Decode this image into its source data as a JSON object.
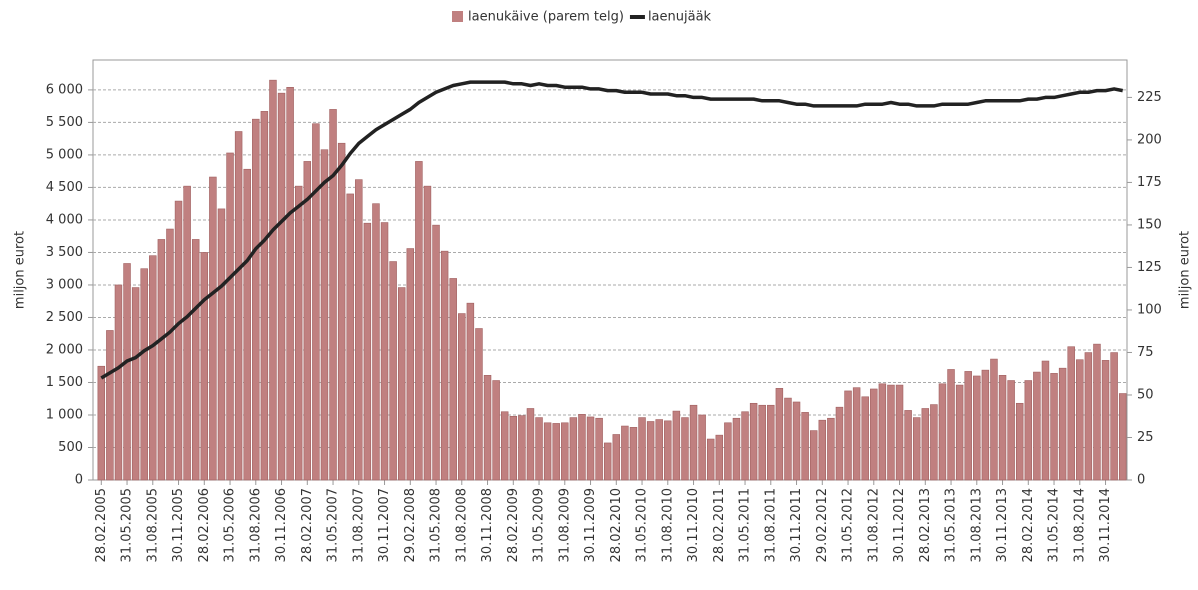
{
  "chart_data": {
    "type": "bar",
    "y_label": "miljon eurot",
    "y2_label": "miljon eurot",
    "categories": [
      "28.02.2005",
      null,
      null,
      "31.05.2005",
      null,
      null,
      "31.08.2005",
      null,
      null,
      "30.11.2005",
      null,
      null,
      "28.02.2006",
      null,
      null,
      "31.05.2006",
      null,
      null,
      "31.08.2006",
      null,
      null,
      "30.11.2006",
      null,
      null,
      "28.02.2007",
      null,
      null,
      "31.05.2007",
      null,
      null,
      "31.08.2007",
      null,
      null,
      "30.11.2007",
      null,
      null,
      "29.02.2008",
      null,
      null,
      "31.05.2008",
      null,
      null,
      "31.08.2008",
      null,
      null,
      "30.11.2008",
      null,
      null,
      "28.02.2009",
      null,
      null,
      "31.05.2009",
      null,
      null,
      "31.08.2009",
      null,
      null,
      "30.11.2009",
      null,
      null,
      "28.02.2010",
      null,
      null,
      "31.05.2010",
      null,
      null,
      "31.08.2010",
      null,
      null,
      "30.11.2010",
      null,
      null,
      "28.02.2011",
      null,
      null,
      "31.05.2011",
      null,
      null,
      "31.08.2011",
      null,
      null,
      "30.11.2011",
      null,
      null,
      "29.02.2012",
      null,
      null,
      "31.05.2012",
      null,
      null,
      "31.08.2012",
      null,
      null,
      "30.11.2012",
      null,
      null,
      "28.02.2013",
      null,
      null,
      "31.05.2013",
      null,
      null,
      "31.08.2013",
      null,
      null,
      "30.11.2013",
      null,
      null,
      "28.02.2014",
      null,
      null,
      "31.05.2014",
      null,
      null,
      "31.08.2014",
      null,
      null,
      "30.11.2014",
      null,
      null
    ],
    "series": [
      {
        "name": "laenukäive (parem telg)",
        "color": "#c08080",
        "values": [
          1750,
          2300,
          3000,
          3330,
          2960,
          3250,
          3450,
          3700,
          3860,
          4290,
          4520,
          3700,
          3500,
          4660,
          4170,
          5030,
          5360,
          4780,
          5550,
          5670,
          6150,
          5950,
          6040,
          4520,
          4900,
          5480,
          5080,
          5700,
          5180,
          4400,
          4620,
          3950,
          4250,
          3960,
          3360,
          2960,
          3560,
          4900,
          4520,
          3920,
          3520,
          3100,
          2560,
          2720,
          2330,
          1610,
          1530,
          1050,
          980,
          990,
          1100,
          960,
          880,
          870,
          880,
          960,
          1010,
          970,
          950,
          570,
          700,
          830,
          810,
          960,
          900,
          930,
          910,
          1060,
          960,
          1150,
          1000,
          630,
          690,
          880,
          950,
          1050,
          1180,
          1150,
          1150,
          1410,
          1260,
          1200,
          1040,
          760,
          920,
          950,
          1120,
          1370,
          1420,
          1280,
          1400,
          1480,
          1460,
          1460,
          1070,
          960,
          1100,
          1160,
          1480,
          1700,
          1460,
          1670,
          1600,
          1690,
          1860,
          1610,
          1530,
          1180,
          1530,
          1660,
          1830,
          1640,
          1720,
          2050,
          1850,
          1960,
          2090,
          1840,
          1960,
          1330
        ]
      },
      {
        "name": "laenujääk",
        "color": "#222222",
        "type": "line",
        "axis": "y2",
        "values": [
          60,
          63,
          66,
          70,
          72,
          76,
          79,
          83,
          87,
          92,
          96,
          101,
          106,
          110,
          114,
          119,
          124,
          129,
          136,
          141,
          147,
          152,
          157,
          161,
          165,
          170,
          175,
          179,
          185,
          192,
          198,
          202,
          206,
          209,
          212,
          215,
          218,
          222,
          225,
          228,
          230,
          232,
          233,
          234,
          234,
          234,
          234,
          234,
          233,
          233,
          232,
          233,
          232,
          232,
          231,
          231,
          231,
          230,
          230,
          229,
          229,
          228,
          228,
          228,
          227,
          227,
          227,
          226,
          226,
          225,
          225,
          224,
          224,
          224,
          224,
          224,
          224,
          223,
          223,
          223,
          222,
          221,
          221,
          220,
          220,
          220,
          220,
          220,
          220,
          221,
          221,
          221,
          222,
          221,
          221,
          220,
          220,
          220,
          221,
          221,
          221,
          221,
          222,
          223,
          223,
          223,
          223,
          223,
          224,
          224,
          225,
          225,
          226,
          227,
          228,
          228,
          229,
          229,
          230,
          229
        ]
      }
    ],
    "ylim": [
      0,
      6460
    ],
    "yticks": [
      0,
      500,
      {
        "value": 1000,
        "label": "1 000"
      },
      {
        "value": 1500,
        "label": "1 500"
      },
      {
        "value": 2000,
        "label": "2 000"
      },
      {
        "value": 2500,
        "label": "2 500"
      },
      {
        "value": 3000,
        "label": "3 000"
      },
      {
        "value": 3500,
        "label": "3 500"
      },
      {
        "value": 4000,
        "label": "4 000"
      },
      {
        "value": 4500,
        "label": "4 500"
      },
      {
        "value": 5000,
        "label": "5 000"
      },
      {
        "value": 5500,
        "label": "5 500"
      },
      {
        "value": 6000,
        "label": "6 000"
      }
    ],
    "y2lim": [
      0,
      247
    ],
    "y2ticks": [
      0,
      25,
      50,
      75,
      100,
      125,
      150,
      175,
      200,
      225
    ],
    "grid": true,
    "legend": "top"
  }
}
